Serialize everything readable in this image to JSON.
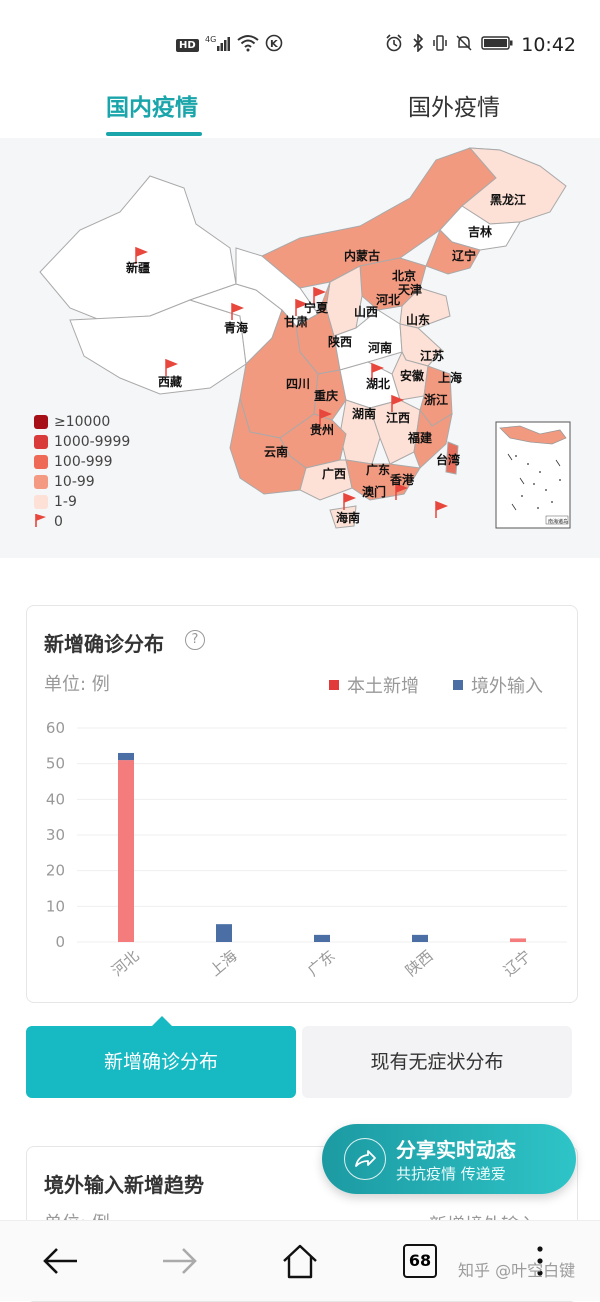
{
  "status_bar": {
    "hd": "HD",
    "network": "4G",
    "time": "10:42",
    "icons": [
      "hd-icon",
      "signal-icon",
      "wifi-icon",
      "k-icon",
      "alarm-icon",
      "bluetooth-icon",
      "vibrate-icon",
      "mute-icon",
      "battery-icon"
    ]
  },
  "tabs": [
    {
      "label": "国内疫情",
      "active": true
    },
    {
      "label": "国外疫情",
      "active": false
    }
  ],
  "map": {
    "provinces": {
      "xinjiang": "新疆",
      "xizang": "西藏",
      "qinghai": "青海",
      "gansu": "甘肃",
      "ningxia": "宁夏",
      "neimenggu": "内蒙古",
      "heilongjiang": "黑龙江",
      "jilin": "吉林",
      "liaoning": "辽宁",
      "beijing": "北京",
      "tianjin": "天津",
      "hebei": "河北",
      "shanxi": "山西",
      "shandong": "山东",
      "shaanxi": "陕西",
      "henan": "河南",
      "jiangsu": "江苏",
      "anhui": "安徽",
      "shanghai": "上海",
      "sichuan": "四川",
      "hubei": "湖北",
      "zhejiang": "浙江",
      "chongqing": "重庆",
      "guizhou": "贵州",
      "hunan": "湖南",
      "jiangxi": "江西",
      "fujian": "福建",
      "yunnan": "云南",
      "guangxi": "广西",
      "guangdong": "广东",
      "taiwan": "台湾",
      "xianggang": "香港",
      "aomen": "澳门",
      "hainan": "海南"
    },
    "legend": [
      {
        "label": "≥10000",
        "color": "#a50f15"
      },
      {
        "label": "1000-9999",
        "color": "#d93b3b"
      },
      {
        "label": "100-999",
        "color": "#ee6a56"
      },
      {
        "label": "10-99",
        "color": "#f59a82"
      },
      {
        "label": "1-9",
        "color": "#fde0d6"
      },
      {
        "label": "0",
        "color": "#e8473d"
      }
    ],
    "inset_label": "南海诸岛"
  },
  "card1": {
    "title": "新增确诊分布",
    "unit": "单位: 例",
    "legend_local": "本土新增",
    "legend_import": "境外输入"
  },
  "chart_data": {
    "type": "bar",
    "stacked": true,
    "categories": [
      "河北",
      "上海",
      "广东",
      "陕西",
      "辽宁"
    ],
    "series": [
      {
        "name": "本土新增",
        "values": [
          51,
          0,
          0,
          0,
          1
        ],
        "color": "#f47c7c"
      },
      {
        "name": "境外输入",
        "values": [
          2,
          5,
          2,
          2,
          0
        ],
        "color": "#4b6fa5"
      }
    ],
    "ylim": [
      0,
      60
    ],
    "yticks": [
      0,
      10,
      20,
      30,
      40,
      50,
      60
    ],
    "grid": true,
    "legend_position": "top-right"
  },
  "toggle": {
    "left": "新增确诊分布",
    "right": "现有无症状分布"
  },
  "card2": {
    "title": "境外输入新增趋势",
    "unit": "单位: 例",
    "legend": "新增境外输入"
  },
  "share": {
    "title": "分享实时动态",
    "subtitle": "共抗疫情 传递爱"
  },
  "navbar": {
    "tab_count": "68",
    "watermark": "知乎 @叶空白键"
  }
}
